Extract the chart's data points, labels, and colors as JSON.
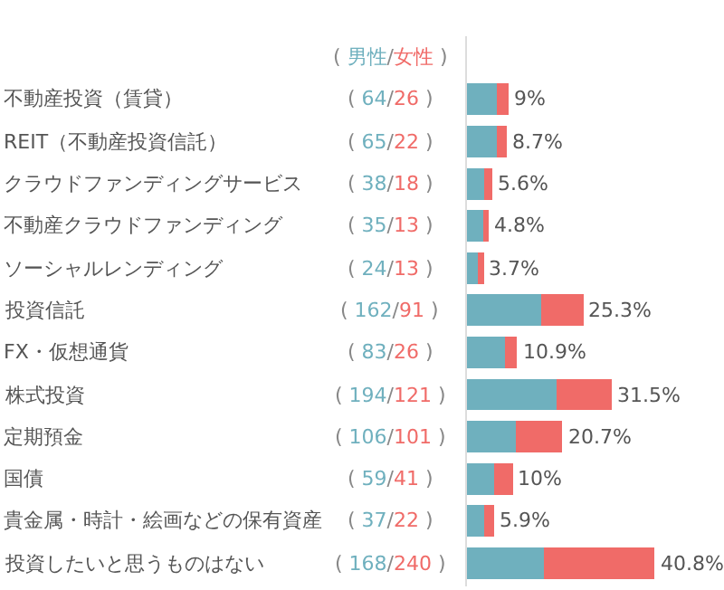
{
  "chart_data": {
    "type": "bar",
    "orientation": "horizontal",
    "stacked": true,
    "data_labels": true,
    "categories": [
      "不動産投資（賃貸）",
      "REIT（不動産投資信託）",
      "クラウドファンディングサービス",
      "不動産クラウドファンディング",
      "ソーシャルレンディング",
      "投資信託",
      "FX・仮想通貨",
      "株式投資",
      "定期預金",
      "国債",
      "貴金属・時計・絵画などの保有資産",
      "投資したいと思うものはない"
    ],
    "series": [
      {
        "name": "男性",
        "color": "#6fb0be",
        "values": [
          64,
          65,
          38,
          35,
          24,
          162,
          83,
          194,
          106,
          59,
          37,
          168
        ]
      },
      {
        "name": "女性",
        "color": "#f06b68",
        "values": [
          26,
          22,
          18,
          13,
          13,
          91,
          26,
          121,
          101,
          41,
          22,
          240
        ]
      }
    ],
    "annotations": [
      "(",
      "/",
      ")",
      {
        "text": "9%",
        "x": 90,
        "y": "不動産投資（賃貸）"
      },
      {
        "text": "8.7%",
        "x": 87,
        "y": "REIT（不動産投資信託）"
      },
      {
        "text": "5.6%",
        "x": 56,
        "y": "クラウドファンディングサービス"
      },
      {
        "text": "4.8%",
        "x": 48,
        "y": "不動産クラウドファンディング"
      },
      {
        "text": "3.7%",
        "x": 37,
        "y": "ソーシャルレンディング"
      },
      {
        "text": "25.3%",
        "x": 253,
        "y": "投資信託"
      },
      {
        "text": "10.9%",
        "x": 109,
        "y": "FX・仮想通貨"
      },
      {
        "text": "31.5%",
        "x": 315,
        "y": "株式投資"
      },
      {
        "text": "20.7%",
        "x": 207,
        "y": "定期預金"
      },
      {
        "text": "10%",
        "x": 100,
        "y": "国債"
      },
      {
        "text": "5.9%",
        "x": 59,
        "y": "貴金属・時計・絵画などの保有資産"
      },
      {
        "text": "40.8%",
        "x": 408,
        "y": "投資したいと思うものはない"
      }
    ]
  }
}
